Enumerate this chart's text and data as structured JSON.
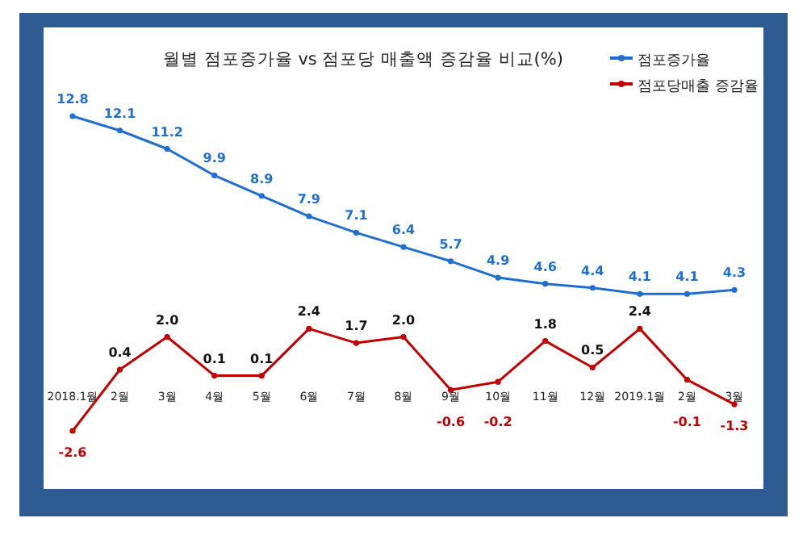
{
  "chart_data": {
    "type": "line",
    "title": "월별 점포증가율 vs 점포당 매출액 증감율 비교(%)",
    "categories": [
      "2018.1월",
      "2월",
      "3월",
      "4월",
      "5월",
      "6월",
      "7월",
      "8월",
      "9월",
      "10월",
      "11월",
      "12월",
      "2019.1월",
      "2월",
      "3월"
    ],
    "series": [
      {
        "name": "점포증가율",
        "color": "#1f6fd1",
        "values": [
          12.8,
          12.1,
          11.2,
          9.9,
          8.9,
          7.9,
          7.1,
          6.4,
          5.7,
          4.9,
          4.6,
          4.4,
          4.1,
          4.1,
          4.3
        ]
      },
      {
        "name": "점포당매출 증감율",
        "color": "#c00000",
        "values": [
          -2.6,
          0.4,
          2.0,
          0.1,
          0.1,
          2.4,
          1.7,
          2.0,
          -0.6,
          -0.2,
          1.8,
          0.5,
          2.4,
          -0.1,
          -1.3
        ],
        "value_labels": [
          "-2.6",
          "0.4",
          "2.0",
          "0.1",
          "0.1",
          "2.4",
          "1.7",
          "2.0",
          "-0.6",
          "-0.2",
          "1.8",
          "0.5",
          "2.4",
          "-0.1",
          "-1.3"
        ]
      }
    ],
    "data_labels": true,
    "legend": "top right",
    "marker": "circle",
    "line_style": "solid"
  }
}
